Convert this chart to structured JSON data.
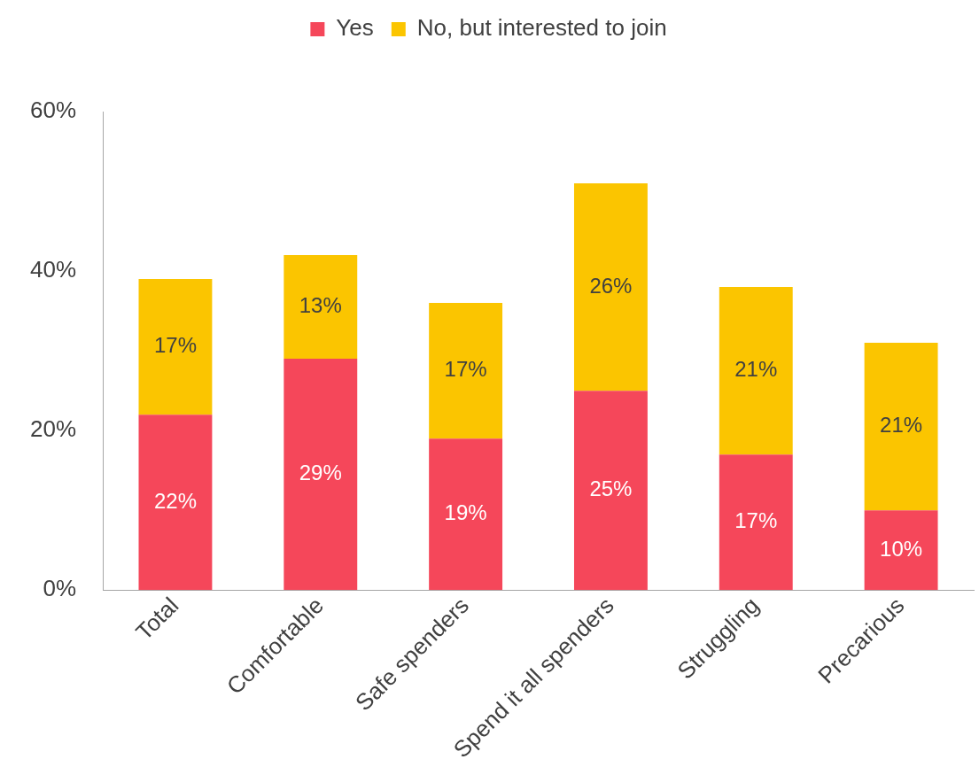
{
  "chart_data": {
    "type": "bar",
    "stacked": true,
    "categories": [
      "Total",
      "Comfortable",
      "Safe spenders",
      "Spend it all spenders",
      "Struggling",
      "Precarious"
    ],
    "series": [
      {
        "name": "Yes",
        "color": "#f5475a",
        "values": [
          22,
          29,
          19,
          25,
          17,
          10
        ],
        "value_labels": [
          "22%",
          "29%",
          "19%",
          "25%",
          "17%",
          "10%"
        ]
      },
      {
        "name": "No, but interested to join",
        "color": "#fbc500",
        "values": [
          17,
          13,
          17,
          26,
          21,
          21
        ],
        "value_labels": [
          "17%",
          "13%",
          "17%",
          "26%",
          "21%",
          "21%"
        ]
      }
    ],
    "ylim": [
      0,
      60
    ],
    "yticks": [
      {
        "value": 0,
        "label": "0%"
      },
      {
        "value": 20,
        "label": "20%"
      },
      {
        "value": 40,
        "label": "40%"
      },
      {
        "value": 60,
        "label": "60%"
      }
    ],
    "grid": false,
    "legend": "top"
  }
}
